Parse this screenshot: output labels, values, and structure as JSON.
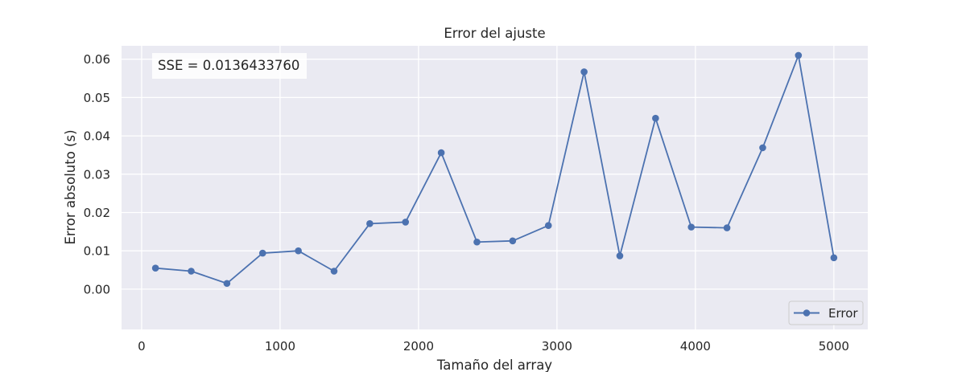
{
  "chart_data": {
    "type": "line",
    "title": "Error del ajuste",
    "xlabel": "Tamaño del array",
    "ylabel": "Error absoluto (s)",
    "xlim": [
      -145,
      5245
    ],
    "ylim": [
      -0.0105,
      0.0635
    ],
    "xticks": [
      0,
      1000,
      2000,
      3000,
      4000,
      5000
    ],
    "xtick_labels": [
      "0",
      "1000",
      "2000",
      "3000",
      "4000",
      "5000"
    ],
    "yticks": [
      0,
      0.01,
      0.02,
      0.03,
      0.04,
      0.05,
      0.06
    ],
    "ytick_labels": [
      "0.00",
      "0.01",
      "0.02",
      "0.03",
      "0.04",
      "0.05",
      "0.06"
    ],
    "grid": true,
    "legend": {
      "placement": "bottom-right",
      "entries": [
        "Error"
      ]
    },
    "annotation": "SSE = 0.0136433760",
    "series": [
      {
        "name": "Error",
        "color": "#4c72b0",
        "x": [
          100,
          358,
          616,
          874,
          1132,
          1390,
          1648,
          1906,
          2164,
          2422,
          2680,
          2938,
          3196,
          3454,
          3712,
          3970,
          4228,
          4486,
          4744,
          5000
        ],
        "y": [
          0.0055,
          0.0047,
          0.0015,
          0.0094,
          0.01,
          0.0047,
          0.0171,
          0.0175,
          0.0356,
          0.0123,
          0.0126,
          0.0166,
          0.0567,
          0.0087,
          0.0446,
          0.0162,
          0.016,
          0.0369,
          0.061,
          0.0082
        ]
      }
    ]
  },
  "colors": {
    "background": "#ffffff",
    "plot_background": "#eaeaf2",
    "grid": "#ffffff",
    "text": "#262626"
  }
}
